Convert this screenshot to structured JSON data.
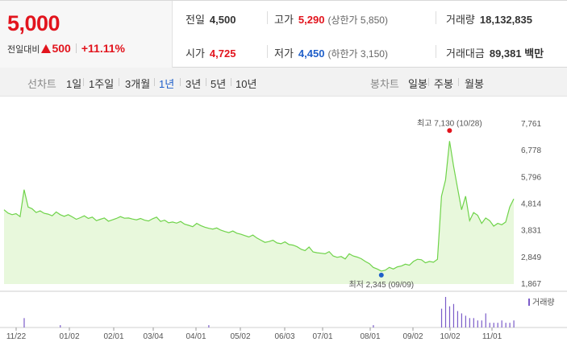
{
  "quote": {
    "price": "5,000",
    "change_label": "전일대비",
    "change_value": "500",
    "change_pct": "+11.11%"
  },
  "stats": {
    "prev_close_label": "전일",
    "prev_close": "4,500",
    "high_label": "고가",
    "high": "5,290",
    "upper_limit": "(상한가 5,850)",
    "volume_label": "거래량",
    "volume": "18,132,835",
    "open_label": "시가",
    "open": "4,725",
    "low_label": "저가",
    "low": "4,450",
    "lower_limit": "(하한가 3,150)",
    "turnover_label": "거래대금",
    "turnover": "89,381 백만"
  },
  "toolbar": {
    "line_label": "선차트",
    "periods": [
      "1일",
      "1주일",
      "3개월",
      "1년",
      "3년",
      "5년",
      "10년"
    ],
    "active_period": "1년",
    "candle_label": "봉차트",
    "candles": [
      "일봉",
      "주봉",
      "월봉"
    ]
  },
  "colors": {
    "up": "#e2141d",
    "down": "#1f5fc9",
    "line": "#6fd34a",
    "area": "#e8f8dc"
  },
  "chart_data": {
    "type": "area",
    "y_ticks": [
      "7,761",
      "6,778",
      "5,796",
      "4,814",
      "3,831",
      "2,849",
      "1,867"
    ],
    "ylim": [
      1867,
      7761
    ],
    "x_ticks": [
      "11/22",
      "01/02",
      "02/01",
      "03/04",
      "04/01",
      "05/02",
      "06/03",
      "07/01",
      "08/01",
      "09/02",
      "10/02",
      "11/01"
    ],
    "high_annotation": "최고 7,130 (10/28)",
    "low_annotation": "최저 2,345 (09/09)",
    "volume_legend": "거래량",
    "series": [
      {
        "values": [
          4600,
          4480,
          4420,
          4460,
          4350,
          5340,
          4700,
          4640,
          4500,
          4560,
          4470,
          4440,
          4380,
          4520,
          4420,
          4360,
          4420,
          4340,
          4250,
          4310,
          4380,
          4280,
          4330,
          4200,
          4250,
          4300,
          4180,
          4230,
          4280,
          4350,
          4290,
          4300,
          4260,
          4230,
          4280,
          4220,
          4190,
          4270,
          4330,
          4170,
          4220,
          4120,
          4150,
          4110,
          4170,
          4070,
          4030,
          3980,
          4100,
          4020,
          3960,
          3920,
          3890,
          3930,
          3850,
          3800,
          3760,
          3820,
          3740,
          3700,
          3650,
          3600,
          3670,
          3560,
          3480,
          3400,
          3430,
          3480,
          3380,
          3350,
          3420,
          3320,
          3300,
          3240,
          3150,
          3100,
          3230,
          3050,
          3020,
          3000,
          2980,
          3060,
          2900,
          2850,
          2880,
          2790,
          2980,
          2900,
          2860,
          2800,
          2700,
          2620,
          2480,
          2420,
          2345,
          2380,
          2480,
          2420,
          2500,
          2530,
          2600,
          2560,
          2700,
          2780,
          2760,
          2650,
          2700,
          2670,
          2780,
          5100,
          5700,
          7130,
          6200,
          5400,
          4600,
          5100,
          4200,
          4500,
          4400,
          4100,
          4300,
          4200,
          4000,
          4100,
          4050,
          4150,
          4700,
          5000
        ],
        "volume": [
          0,
          0,
          0,
          0,
          0,
          4,
          0,
          0,
          0,
          0,
          0,
          0,
          0,
          0,
          1,
          0,
          0,
          0,
          0,
          0,
          0,
          0,
          0,
          0,
          0,
          0,
          0,
          0,
          0,
          0,
          0,
          0,
          0,
          0,
          0,
          0,
          0,
          0,
          0,
          0,
          0,
          0,
          0,
          0,
          0,
          0,
          0,
          0,
          0,
          0,
          0,
          1,
          0,
          0,
          0,
          0,
          0,
          0,
          0,
          0,
          0,
          0,
          0,
          0,
          0,
          0,
          0,
          0,
          0,
          0,
          0,
          0,
          0,
          0,
          0,
          0,
          0,
          0,
          0,
          0,
          0,
          0,
          0,
          0,
          0,
          0,
          0,
          0,
          0,
          0,
          0,
          0,
          1,
          0,
          0,
          0,
          0,
          0,
          0,
          0,
          0,
          0,
          0,
          0,
          0,
          0,
          0,
          0,
          0,
          8,
          13,
          9,
          10,
          7,
          6,
          5,
          4,
          4,
          3,
          3,
          6,
          2,
          2,
          2,
          3,
          2,
          2,
          3
        ]
      }
    ]
  }
}
